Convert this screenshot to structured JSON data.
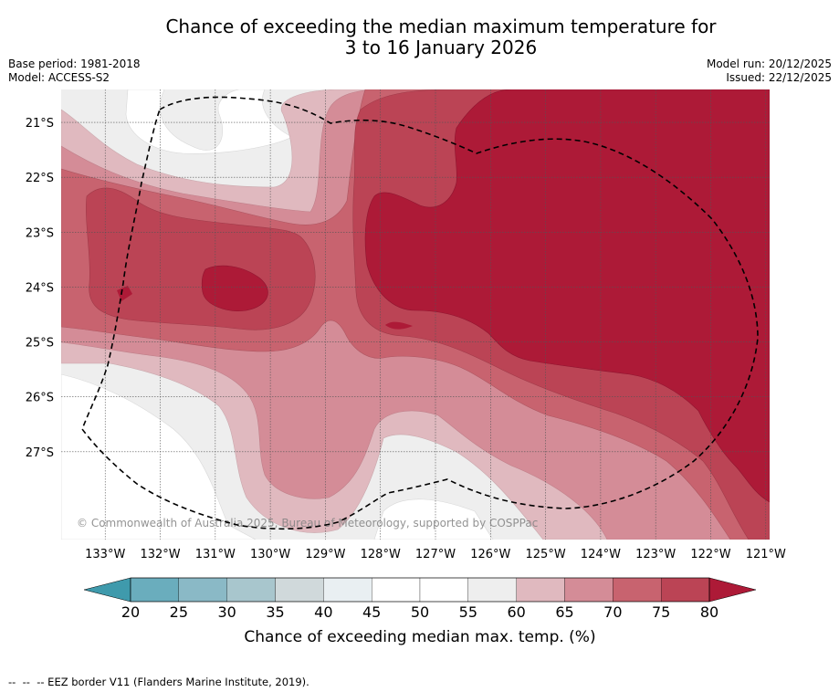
{
  "title": {
    "line1": "Chance of exceeding the median maximum temperature for",
    "line2": "3 to 16 January 2026"
  },
  "meta_left": {
    "base_period": "Base period: 1981-2018",
    "model": "Model: ACCESS-S2"
  },
  "meta_right": {
    "model_run": "Model run: 20/12/2025",
    "issued": "Issued: 22/12/2025"
  },
  "map": {
    "extent": {
      "lon_min": -133.8,
      "lon_max": -120.93,
      "lat_min": -28.6,
      "lat_max": -20.4
    },
    "lat_ticks": [
      {
        "value": -21,
        "label": "21°S"
      },
      {
        "value": -22,
        "label": "22°S"
      },
      {
        "value": -23,
        "label": "23°S"
      },
      {
        "value": -24,
        "label": "24°S"
      },
      {
        "value": -25,
        "label": "25°S"
      },
      {
        "value": -26,
        "label": "26°S"
      },
      {
        "value": -27,
        "label": "27°S"
      }
    ],
    "lon_ticks": [
      {
        "value": -133,
        "label": "133°W"
      },
      {
        "value": -132,
        "label": "132°W"
      },
      {
        "value": -131,
        "label": "131°W"
      },
      {
        "value": -130,
        "label": "130°W"
      },
      {
        "value": -129,
        "label": "129°W"
      },
      {
        "value": -128,
        "label": "128°W"
      },
      {
        "value": -127,
        "label": "127°W"
      },
      {
        "value": -126,
        "label": "126°W"
      },
      {
        "value": -125,
        "label": "125°W"
      },
      {
        "value": -124,
        "label": "124°W"
      },
      {
        "value": -123,
        "label": "123°W"
      },
      {
        "value": -122,
        "label": "122°W"
      },
      {
        "value": -121,
        "label": "121°W"
      }
    ],
    "copyright": "© Commonwealth of Australia 2025, Bureau of Meteorology, supported by COSPPac"
  },
  "colorbar": {
    "label": "Chance of exceeding median max. temp. (%)",
    "ticks": [
      "20",
      "25",
      "30",
      "35",
      "40",
      "45",
      "50",
      "55",
      "60",
      "65",
      "70",
      "75",
      "80"
    ],
    "low_extend_color": "#3f9aac",
    "high_extend_color": "#ad1a37",
    "colors": [
      "#6aadbd",
      "#8ab9c6",
      "#a8c6cd",
      "#d0d9db",
      "#e9eff2",
      "#ffffff",
      "#ffffff",
      "#eeeeee",
      "#e0b9bf",
      "#d48c97",
      "#c8636f",
      "#bb4455"
    ]
  },
  "footer": "--  --  -- EEZ border V11 (Flanders Marine Institute, 2019)."
}
